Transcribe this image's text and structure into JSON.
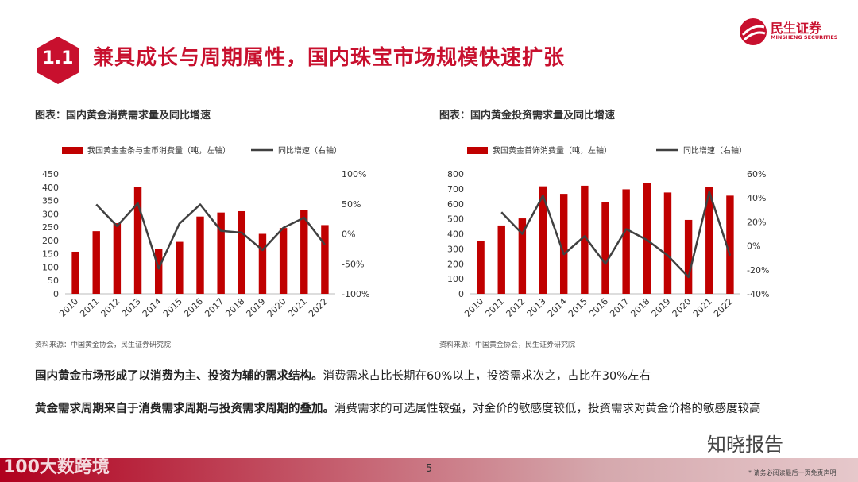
{
  "header": {
    "section_number": "1.1",
    "title": "兼具成长与周期属性，国内珠宝市场规模快速扩张",
    "brand_cn": "民生证券",
    "brand_en": "MINSHENG SECURITIES",
    "brand_color": "#c8102e"
  },
  "charts": [
    {
      "caption": "图表：国内黄金消费需求量及同比增速",
      "source": "资料来源：中国黄金协会，民生证券研究院"
    },
    {
      "caption": "图表：国内黄金投资需求量及同比增速",
      "source": "资料来源：中国黄金协会，民生证券研究院"
    }
  ],
  "chart_data": [
    {
      "type": "bar",
      "categories": [
        "2010",
        "2011",
        "2012",
        "2013",
        "2014",
        "2015",
        "2016",
        "2017",
        "2018",
        "2019",
        "2020",
        "2021",
        "2022"
      ],
      "series": [
        {
          "name": "我国黄金金条与金币消费量（吨，左轴）",
          "type": "bar",
          "axis": "left",
          "color": "#c00000",
          "values": [
            158,
            235,
            265,
            400,
            167,
            195,
            290,
            305,
            310,
            225,
            247,
            313,
            258
          ]
        },
        {
          "name": "同比增速（右轴）",
          "type": "line",
          "axis": "right",
          "color": "#404040",
          "values": [
            null,
            0.49,
            0.13,
            0.51,
            -0.58,
            0.17,
            0.49,
            0.05,
            0.02,
            -0.27,
            0.1,
            0.27,
            -0.18
          ]
        }
      ],
      "y_left": {
        "min": 0,
        "max": 450,
        "ticks": [
          "0",
          "50",
          "100",
          "150",
          "200",
          "250",
          "300",
          "350",
          "400",
          "450"
        ]
      },
      "y_right": {
        "min": -1,
        "max": 1,
        "ticks": [
          "-100%",
          "-50%",
          "0%",
          "50%",
          "100%"
        ]
      }
    },
    {
      "type": "bar",
      "categories": [
        "2010",
        "2011",
        "2012",
        "2013",
        "2014",
        "2015",
        "2016",
        "2017",
        "2018",
        "2019",
        "2020",
        "2021",
        "2022"
      ],
      "series": [
        {
          "name": "我国黄金首饰消费量（吨，左轴）",
          "type": "bar",
          "axis": "left",
          "color": "#c00000",
          "values": [
            355,
            456,
            503,
            717,
            667,
            721,
            611,
            697,
            737,
            676,
            493,
            711,
            655
          ]
        },
        {
          "name": "同比增速（右轴）",
          "type": "line",
          "axis": "right",
          "color": "#404040",
          "values": [
            null,
            0.28,
            0.1,
            0.42,
            -0.07,
            0.08,
            -0.15,
            0.14,
            0.05,
            -0.08,
            -0.26,
            0.45,
            -0.08
          ]
        }
      ],
      "y_left": {
        "min": 0,
        "max": 800,
        "ticks": [
          "0",
          "100",
          "200",
          "300",
          "400",
          "500",
          "600",
          "700",
          "800"
        ]
      },
      "y_right": {
        "min": -0.4,
        "max": 0.6,
        "ticks": [
          "-40%",
          "-20%",
          "0%",
          "20%",
          "40%",
          "60%"
        ]
      }
    }
  ],
  "paragraphs": [
    {
      "bold": "国内黄金市场形成了以消费为主、投资为辅的需求结构。",
      "text": "消费需求占比长期在60%以上，投资需求次之，占比在30%左右"
    },
    {
      "bold": "黄金需求周期来自于消费需求周期与投资需求周期的叠加。",
      "text": "消费需求的可选属性较强，对金价的敏感度较低，投资需求对黄金价格的敏感度较高"
    }
  ],
  "footer": {
    "page_number": "5",
    "disclaimer": "* 请务必阅读最后一页免责声明",
    "watermark_left": "100大数跨境",
    "watermark_right": "知晓报告"
  }
}
